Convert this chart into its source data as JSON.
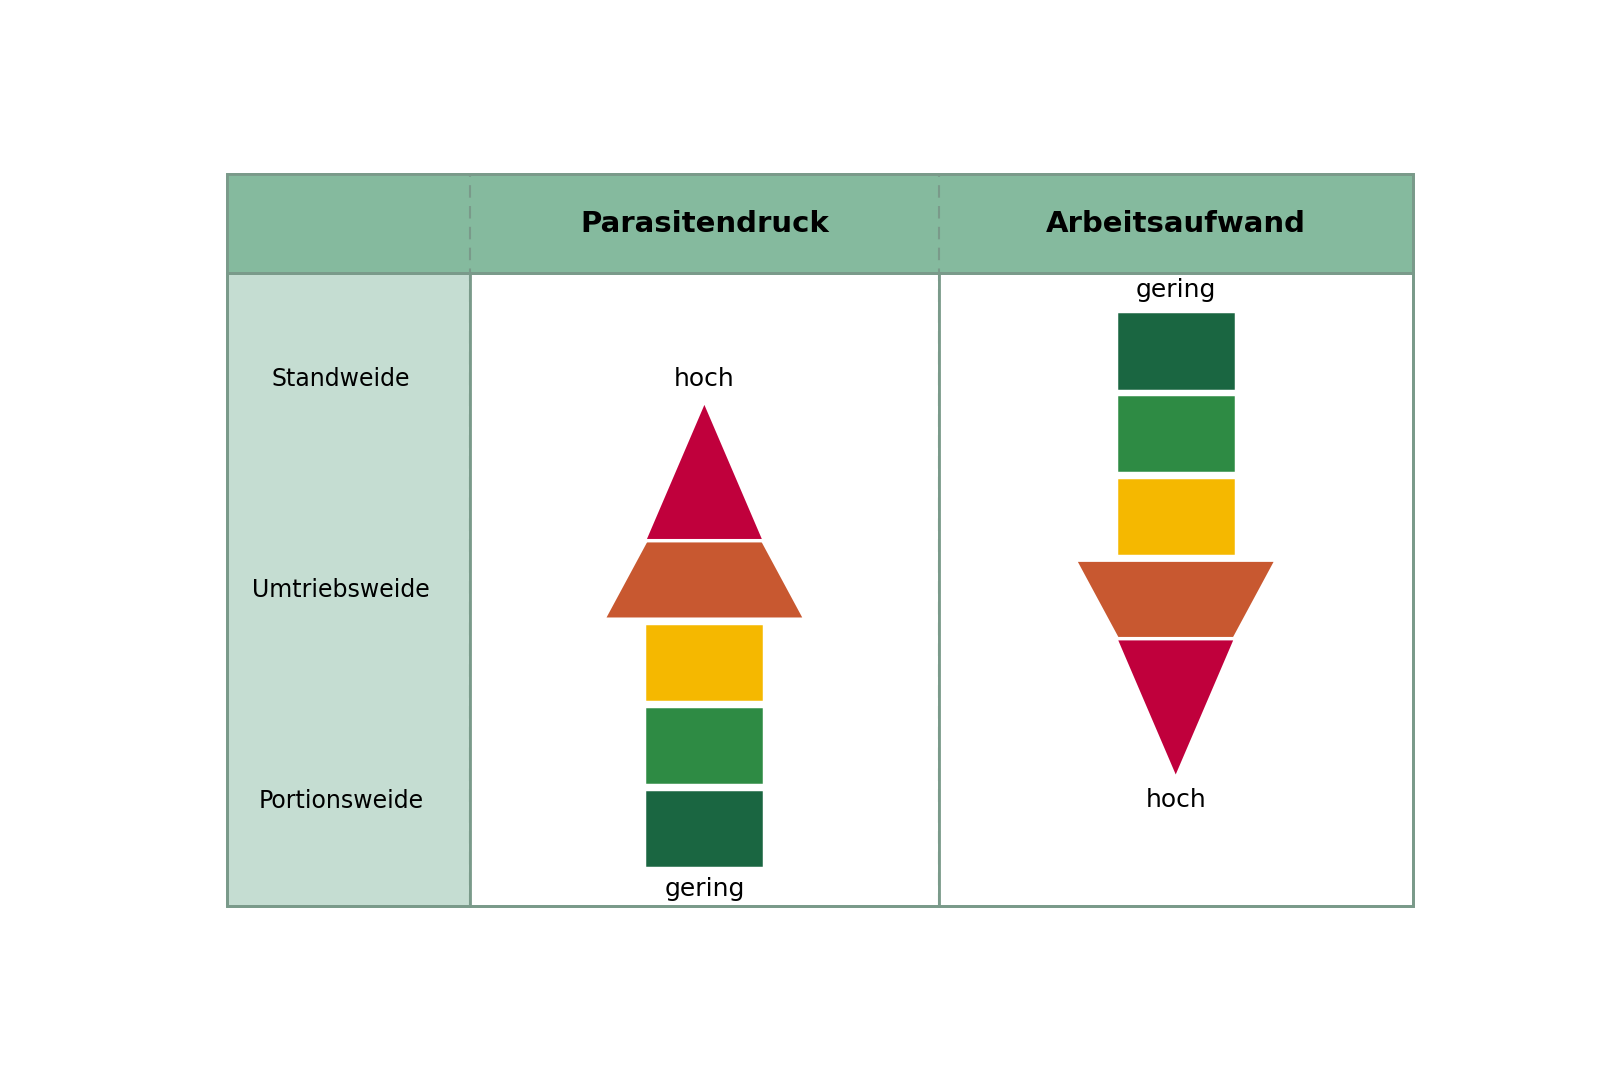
{
  "title": "",
  "header_bg_color": "#85BA9E",
  "left_col_bg_color": "#C5DDD2",
  "col1_header": "Parasitendruck",
  "col2_header": "Arbeitsaufwand",
  "row_labels": [
    "Standweide",
    "Umtriebsweide",
    "Portionsweide"
  ],
  "parasitendruck_label_top": "hoch",
  "parasitendruck_label_bottom": "gering",
  "arbeitsaufwand_label_top": "gering",
  "arbeitsaufwand_label_bottom": "hoch",
  "colors": {
    "crimson": "#C0003C",
    "orange_red": "#C85830",
    "yellow": "#F5B800",
    "dark_green": "#1A6641",
    "medium_green": "#2E8B44"
  },
  "border_color": "#7A9A8A",
  "background_color": "#FFFFFF",
  "outer_bg": "#FFFFFF"
}
